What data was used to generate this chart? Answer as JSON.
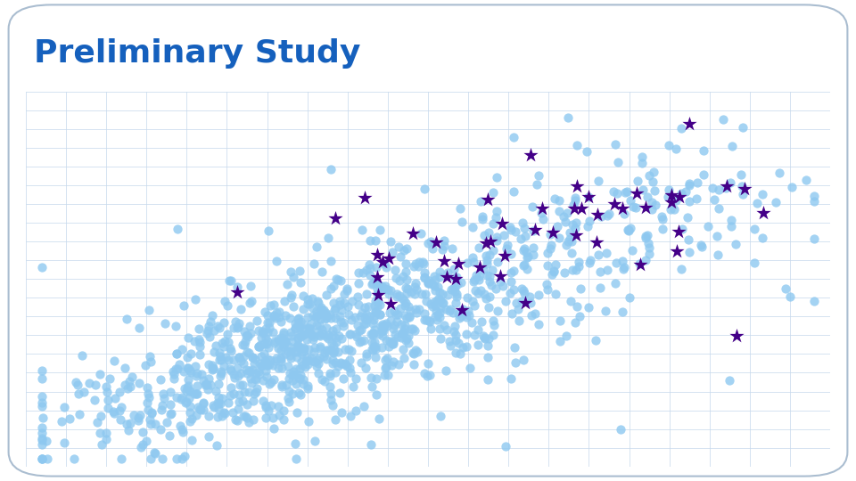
{
  "title": "Preliminary Study",
  "title_color": "#1560BD",
  "title_fontsize": 26,
  "title_fontweight": "bold",
  "background_color": "#FFFFFF",
  "grid_color": "#C5D8EC",
  "dot_color": "#8EC8F0",
  "star_color": "#440088",
  "dot_alpha": 0.8,
  "star_alpha": 1.0,
  "dot_size": 55,
  "star_size": 150,
  "n_dots": 1200,
  "n_stars": 50,
  "seed": 7,
  "xlim": [
    0,
    10
  ],
  "ylim": [
    0,
    10
  ],
  "fig_width": 9.6,
  "fig_height": 5.4,
  "border_color": "#AABDD0",
  "border_linewidth": 1.5
}
